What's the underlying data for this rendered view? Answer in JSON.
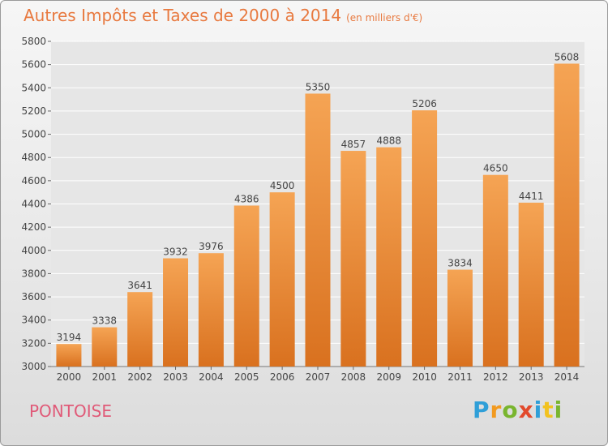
{
  "header": {
    "title": "Autres Impôts et Taxes de 2000 à 2014",
    "subtitle": "(en milliers d'€)"
  },
  "footer": {
    "city": "PONTOISE",
    "logo": "Proxiti"
  },
  "colors": {
    "bar_light": "#f5a454",
    "bar_dark": "#d9711f",
    "title": "#e8793f",
    "city": "#e05a78",
    "grid": "#ffffff"
  },
  "chart_data": {
    "type": "bar",
    "title": "Autres Impôts et Taxes de 2000 à 2014",
    "subtitle": "(en milliers d'€)",
    "categories": [
      "2000",
      "2001",
      "2002",
      "2003",
      "2004",
      "2005",
      "2006",
      "2007",
      "2008",
      "2009",
      "2010",
      "2011",
      "2012",
      "2013",
      "2014"
    ],
    "values": [
      3194,
      3338,
      3641,
      3932,
      3976,
      4386,
      4500,
      5350,
      4857,
      4888,
      5206,
      3834,
      4650,
      4411,
      5608
    ],
    "ylim": [
      3000,
      5800
    ],
    "yticks": [
      3000,
      3200,
      3400,
      3600,
      3800,
      4000,
      4200,
      4400,
      4600,
      4800,
      5000,
      5200,
      5400,
      5600,
      5800
    ],
    "grid": true,
    "data_labels": true
  }
}
